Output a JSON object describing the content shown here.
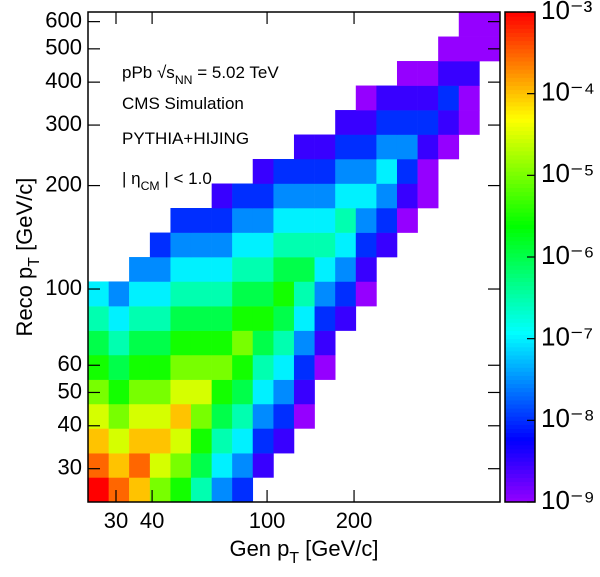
{
  "chart_data": {
    "type": "heatmap",
    "xscale": "log",
    "yscale": "log",
    "zscale": "log",
    "colormap": "rainbow",
    "xlabel": [
      {
        "text": "Gen p"
      },
      {
        "text": "T",
        "sub": true
      },
      {
        "text": " [GeV/c]"
      }
    ],
    "ylabel": [
      {
        "text": "Reco p"
      },
      {
        "text": "T",
        "sub": true
      },
      {
        "text": " [GeV/c]"
      }
    ],
    "annotations": [
      [
        {
          "text": "pPb  √s"
        },
        {
          "text": "NN",
          "sub": true
        },
        {
          "text": " = 5.02 TeV"
        }
      ],
      [
        {
          "text": "CMS Simulation"
        }
      ],
      [
        {
          "text": "PYTHIA+HIJING"
        }
      ],
      [
        {
          "text": "| η"
        },
        {
          "text": "CM",
          "sub": true
        },
        {
          "text": " | < 1.0"
        }
      ]
    ],
    "xlim": [
      24,
      640
    ],
    "ylim": [
      24,
      640
    ],
    "xticks": [
      30,
      40,
      100,
      200
    ],
    "yticks": [
      30,
      40,
      50,
      60,
      100,
      200,
      300,
      400,
      500,
      600
    ],
    "zlim": [
      1e-09,
      0.001
    ],
    "zticks": [
      {
        "value": 1e-09,
        "label": "10⁻⁹"
      },
      {
        "value": 1e-08,
        "label": "10⁻⁸"
      },
      {
        "value": 1e-07,
        "label": "10⁻⁷"
      },
      {
        "value": 1e-06,
        "label": "10⁻⁶"
      },
      {
        "value": 1e-05,
        "label": "10⁻⁵"
      },
      {
        "value": 0.0001,
        "label": "10⁻⁴"
      },
      {
        "value": 0.001,
        "label": "10⁻³"
      }
    ],
    "xbins": [
      24,
      28.3,
      33.3,
      39.3,
      46.3,
      54.5,
      64.3,
      75.7,
      89.2,
      105.2,
      123.9,
      146,
      172.1,
      202.8,
      239,
      281.6,
      331.8,
      391,
      460.8,
      543,
      640
    ],
    "ybins": [
      24,
      28.3,
      33.3,
      39.3,
      46.3,
      54.5,
      64.3,
      75.7,
      89.2,
      105.2,
      123.9,
      146,
      172.1,
      202.8,
      239,
      281.6,
      331.8,
      391,
      460.8,
      543,
      640
    ],
    "z": [
      [
        0.001,
        0.0003,
        0.0001,
        1e-05,
        3e-06,
        3e-07,
        3e-08,
        1e-08,
        null,
        null,
        null,
        null,
        null,
        null,
        null,
        null,
        null,
        null,
        null,
        null
      ],
      [
        0.0003,
        0.0001,
        0.0003,
        3e-05,
        1e-05,
        1e-06,
        1e-07,
        3e-08,
        3e-09,
        null,
        null,
        null,
        null,
        null,
        null,
        null,
        null,
        null,
        null,
        null
      ],
      [
        0.0001,
        3e-05,
        0.0001,
        0.0001,
        3e-05,
        3e-06,
        3e-07,
        1e-07,
        1e-08,
        3e-09,
        null,
        null,
        null,
        null,
        null,
        null,
        null,
        null,
        null,
        null
      ],
      [
        3e-05,
        1e-05,
        3e-05,
        3e-05,
        0.0001,
        1e-05,
        1e-06,
        3e-07,
        3e-08,
        1e-08,
        1e-09,
        null,
        null,
        null,
        null,
        null,
        null,
        null,
        null,
        null
      ],
      [
        1e-05,
        3e-06,
        1e-05,
        1e-05,
        3e-05,
        3e-05,
        3e-06,
        1e-06,
        1e-07,
        3e-08,
        3e-09,
        null,
        null,
        null,
        null,
        null,
        null,
        null,
        null,
        null
      ],
      [
        3e-06,
        1e-06,
        3e-06,
        3e-06,
        1e-05,
        1e-05,
        1e-05,
        3e-06,
        3e-07,
        1e-07,
        1e-08,
        1e-09,
        null,
        null,
        null,
        null,
        null,
        null,
        null,
        null
      ],
      [
        1e-06,
        3e-07,
        1e-06,
        1e-06,
        3e-06,
        3e-06,
        3e-06,
        1e-05,
        1e-06,
        3e-07,
        3e-08,
        3e-09,
        null,
        null,
        null,
        null,
        null,
        null,
        null,
        null
      ],
      [
        3e-07,
        1e-07,
        3e-07,
        3e-07,
        1e-06,
        1e-06,
        1e-06,
        3e-06,
        3e-06,
        1e-06,
        1e-07,
        1e-08,
        3e-09,
        null,
        null,
        null,
        null,
        null,
        null,
        null
      ],
      [
        1e-07,
        3e-08,
        1e-07,
        1e-07,
        3e-07,
        3e-07,
        3e-07,
        1e-06,
        1e-06,
        3e-06,
        3e-07,
        3e-08,
        1e-08,
        1e-09,
        null,
        null,
        null,
        null,
        null,
        null
      ],
      [
        null,
        null,
        3e-08,
        3e-08,
        1e-07,
        1e-07,
        1e-07,
        3e-07,
        3e-07,
        1e-06,
        1e-06,
        1e-07,
        3e-08,
        3e-09,
        null,
        null,
        null,
        null,
        null,
        null
      ],
      [
        null,
        null,
        null,
        1e-08,
        3e-08,
        3e-08,
        3e-08,
        1e-07,
        1e-07,
        3e-07,
        3e-07,
        3e-07,
        1e-07,
        1e-08,
        3e-09,
        null,
        null,
        null,
        null,
        null
      ],
      [
        null,
        null,
        null,
        null,
        1e-08,
        1e-08,
        1e-08,
        3e-08,
        3e-08,
        1e-07,
        1e-07,
        1e-07,
        3e-07,
        3e-08,
        1e-08,
        1e-09,
        null,
        null,
        null,
        null
      ],
      [
        null,
        null,
        null,
        null,
        null,
        null,
        3e-09,
        1e-08,
        1e-08,
        3e-08,
        3e-08,
        3e-08,
        1e-07,
        1e-07,
        3e-08,
        3e-09,
        1e-09,
        null,
        null,
        null
      ],
      [
        null,
        null,
        null,
        null,
        null,
        null,
        null,
        null,
        3e-09,
        1e-08,
        1e-08,
        1e-08,
        3e-08,
        3e-08,
        1e-07,
        1e-08,
        1e-09,
        null,
        null,
        null
      ],
      [
        null,
        null,
        null,
        null,
        null,
        null,
        null,
        null,
        null,
        null,
        3e-09,
        3e-09,
        1e-08,
        1e-08,
        3e-08,
        3e-08,
        3e-09,
        1e-09,
        null,
        null
      ],
      [
        null,
        null,
        null,
        null,
        null,
        null,
        null,
        null,
        null,
        null,
        null,
        null,
        3e-09,
        3e-09,
        1e-08,
        1e-08,
        1e-08,
        3e-09,
        1e-09,
        null
      ],
      [
        null,
        null,
        null,
        null,
        null,
        null,
        null,
        null,
        null,
        null,
        null,
        null,
        null,
        1e-09,
        3e-09,
        3e-09,
        3e-09,
        1e-08,
        1e-09,
        null
      ],
      [
        null,
        null,
        null,
        null,
        null,
        null,
        null,
        null,
        null,
        null,
        null,
        null,
        null,
        null,
        null,
        1e-09,
        1e-09,
        3e-09,
        3e-09,
        null
      ],
      [
        null,
        null,
        null,
        null,
        null,
        null,
        null,
        null,
        null,
        null,
        null,
        null,
        null,
        null,
        null,
        null,
        null,
        1e-09,
        1e-09,
        1e-09
      ],
      [
        null,
        null,
        null,
        null,
        null,
        null,
        null,
        null,
        null,
        null,
        null,
        null,
        null,
        null,
        null,
        null,
        null,
        null,
        1e-09,
        1e-09
      ]
    ]
  }
}
